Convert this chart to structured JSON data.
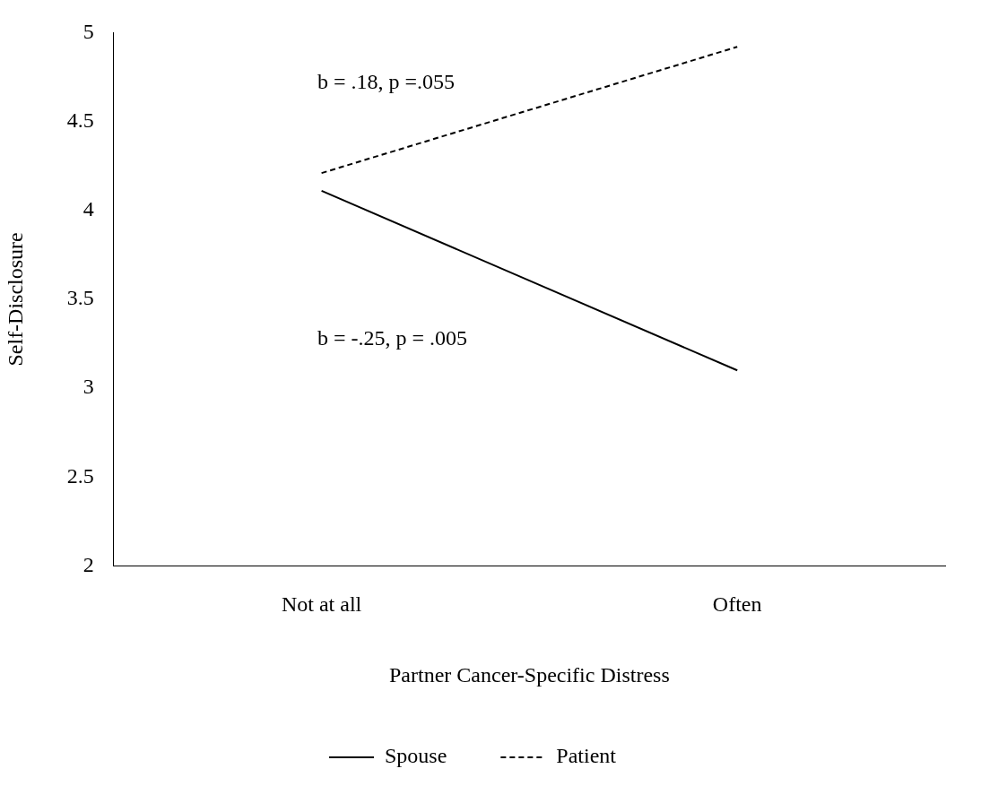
{
  "chart_data": {
    "type": "line",
    "xlabel": "Partner Cancer-Specific Distress",
    "ylabel": "Self-Disclosure",
    "categories": [
      "Not at all",
      "Often"
    ],
    "series": [
      {
        "name": "Spouse",
        "color": "#000000",
        "values": [
          4.11,
          3.1
        ],
        "line_style": "solid"
      },
      {
        "name": "Patient",
        "color": "#000000",
        "values": [
          4.21,
          4.92
        ],
        "line_style": "dashed"
      }
    ],
    "ylim": [
      2,
      5
    ],
    "yticks": [
      2,
      2.5,
      3,
      3.5,
      4,
      4.5,
      5
    ],
    "grid": false,
    "legend": "bottom",
    "marker": "none",
    "annotations": [
      "b = .18, p =.055",
      "b = -.25, p = .005"
    ]
  }
}
